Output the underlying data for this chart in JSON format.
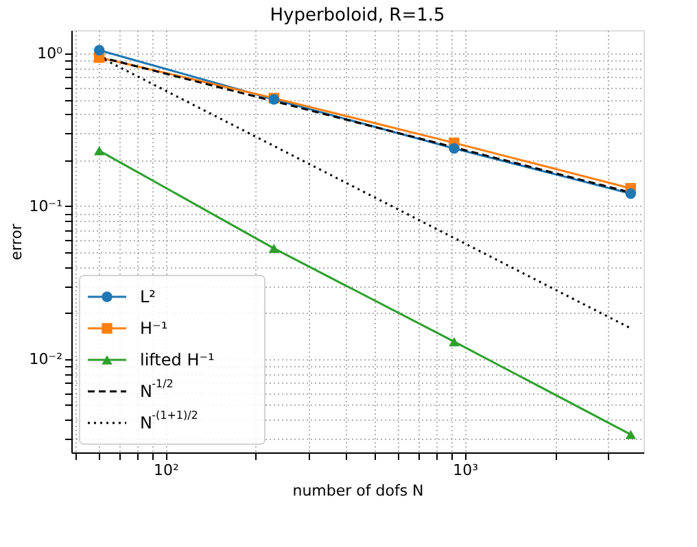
{
  "chart_data": {
    "type": "line",
    "title": "Hyperboloid, R=1.5",
    "xlabel": "number of dofs N",
    "ylabel": "error",
    "log": "xy",
    "grid": true,
    "legend": "bottom left",
    "xlim": [
      48.4,
      3950
    ],
    "ylim": [
      0.00245,
      1.42
    ],
    "xticks": [
      {
        "value": 50,
        "label": null
      },
      {
        "value": 60,
        "label": null
      },
      {
        "value": 70,
        "label": null
      },
      {
        "value": 80,
        "label": null
      },
      {
        "value": 90,
        "label": null
      },
      {
        "value": 100,
        "label": "10²"
      },
      {
        "value": 200,
        "label": null
      },
      {
        "value": 300,
        "label": null
      },
      {
        "value": 400,
        "label": null
      },
      {
        "value": 500,
        "label": null
      },
      {
        "value": 600,
        "label": null
      },
      {
        "value": 700,
        "label": null
      },
      {
        "value": 800,
        "label": null
      },
      {
        "value": 900,
        "label": null
      },
      {
        "value": 1000,
        "label": "10³"
      },
      {
        "value": 2000,
        "label": null
      },
      {
        "value": 3000,
        "label": null
      }
    ],
    "yticks": [
      {
        "value": 0.003,
        "label": null
      },
      {
        "value": 0.004,
        "label": null
      },
      {
        "value": 0.005,
        "label": null
      },
      {
        "value": 0.006,
        "label": null
      },
      {
        "value": 0.007,
        "label": null
      },
      {
        "value": 0.008,
        "label": null
      },
      {
        "value": 0.009,
        "label": null
      },
      {
        "value": 0.01,
        "label": "10⁻²"
      },
      {
        "value": 0.02,
        "label": null
      },
      {
        "value": 0.03,
        "label": null
      },
      {
        "value": 0.04,
        "label": null
      },
      {
        "value": 0.05,
        "label": null
      },
      {
        "value": 0.06,
        "label": null
      },
      {
        "value": 0.07,
        "label": null
      },
      {
        "value": 0.08,
        "label": null
      },
      {
        "value": 0.09,
        "label": null
      },
      {
        "value": 0.1,
        "label": "10⁻¹"
      },
      {
        "value": 0.2,
        "label": null
      },
      {
        "value": 0.3,
        "label": null
      },
      {
        "value": 0.4,
        "label": null
      },
      {
        "value": 0.5,
        "label": null
      },
      {
        "value": 0.6,
        "label": null
      },
      {
        "value": 0.7,
        "label": null
      },
      {
        "value": 0.8,
        "label": null
      },
      {
        "value": 0.9,
        "label": null
      },
      {
        "value": 1,
        "label": "10⁰"
      }
    ],
    "x": [
      60,
      230,
      920,
      3580
    ],
    "series": [
      {
        "name": "L²",
        "color": "#1f77b4",
        "marker": "circle",
        "line_style": "solid",
        "values": [
          1.05,
          0.5,
          0.239,
          0.121
        ]
      },
      {
        "name": "H⁻¹",
        "color": "#ff7f0e",
        "marker": "square",
        "line_style": "solid",
        "values": [
          0.94,
          0.51,
          0.26,
          0.131
        ]
      },
      {
        "name": "lifted H⁻¹",
        "color": "#2ca02c",
        "marker": "triangle",
        "line_style": "solid",
        "values": [
          0.231,
          0.053,
          0.013,
          0.00321
        ]
      },
      {
        "name": "N$^{-1/2}$",
        "color": "#000000",
        "marker": "none",
        "line_style": "dashed",
        "values": [
          0.95,
          0.487,
          0.243,
          0.123
        ]
      },
      {
        "name": "N$^{-(1+1)/2}$",
        "color": "#000000",
        "marker": "none",
        "line_style": "dotted",
        "values": [
          0.95,
          0.248,
          0.062,
          0.0159
        ]
      }
    ]
  }
}
